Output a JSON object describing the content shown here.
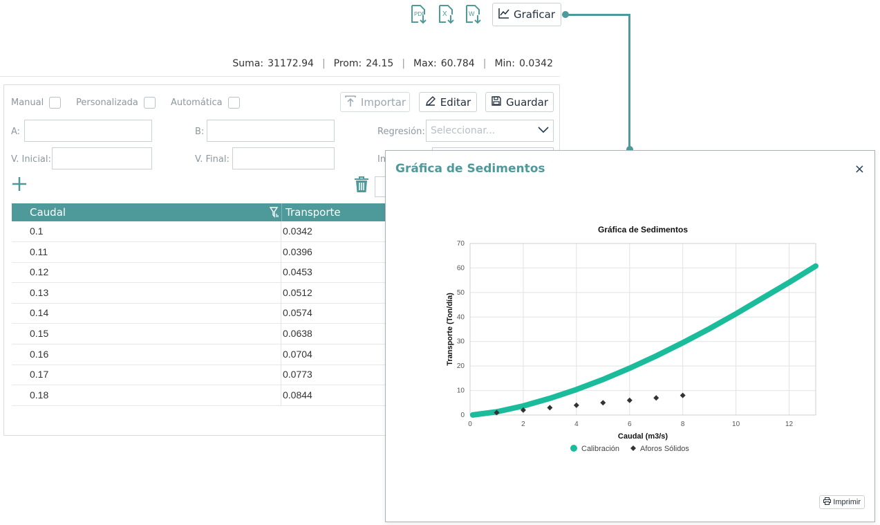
{
  "toolbar": {
    "pdf_icon": "pdf-download-icon",
    "excel_icon": "excel-download-icon",
    "word_icon": "word-download-icon",
    "graficar_label": "Graficar"
  },
  "stats": {
    "suma_label": "Suma:",
    "suma": "31172.94",
    "prom_label": "Prom:",
    "prom": "24.15",
    "max_label": "Max:",
    "max": "60.784",
    "min_label": "Min:",
    "min": "0.0342",
    "sep": "|"
  },
  "options": {
    "manual": "Manual",
    "personalizada": "Personalizada",
    "automatica": "Automática"
  },
  "actions": {
    "importar": "Importar",
    "editar": "Editar",
    "guardar": "Guardar"
  },
  "fields": {
    "a_label": "A:",
    "b_label": "B:",
    "regresion_label": "Regresión:",
    "regresion_placeholder": "Seleccionar...",
    "v_inicial_label": "V. Inicial:",
    "v_final_label": "V. Final:",
    "partial_label": "In"
  },
  "table": {
    "headers": [
      "Caudal",
      "Transporte"
    ],
    "rows": [
      [
        "0.1",
        "0.0342"
      ],
      [
        "0.11",
        "0.0396"
      ],
      [
        "0.12",
        "0.0453"
      ],
      [
        "0.13",
        "0.0512"
      ],
      [
        "0.14",
        "0.0574"
      ],
      [
        "0.15",
        "0.0638"
      ],
      [
        "0.16",
        "0.0704"
      ],
      [
        "0.17",
        "0.0773"
      ],
      [
        "0.18",
        "0.0844"
      ]
    ]
  },
  "modal": {
    "title": "Gráfica de Sedimentos",
    "close": "×",
    "print_label": "Imprimir"
  },
  "colors": {
    "accent": "#4e9a9a",
    "calibracion": "#1abc9c",
    "aforos": "#333333"
  },
  "chart_data": {
    "type": "scatter",
    "title": "Gráfica de Sedimentos",
    "xlabel": "Caudal (m3/s)",
    "ylabel": "Transporte (Ton/día)",
    "xlim": [
      0,
      13
    ],
    "ylim": [
      0,
      70
    ],
    "xticks": [
      0,
      2,
      4,
      6,
      8,
      10,
      12
    ],
    "yticks": [
      0,
      10,
      20,
      30,
      40,
      50,
      60,
      70
    ],
    "grid": true,
    "legend_position": "bottom",
    "series": [
      {
        "name": "Calibración",
        "kind": "line",
        "x": [
          0.1,
          1,
          2,
          3,
          4,
          5,
          6,
          7,
          8,
          9,
          10,
          11,
          12,
          13
        ],
        "y": [
          0.0342,
          1.3,
          3.7,
          6.8,
          10.4,
          14.5,
          19.1,
          24.1,
          29.5,
          35.2,
          41.3,
          47.7,
          54.1,
          60.784
        ]
      },
      {
        "name": "Aforos Sólidos",
        "kind": "scatter",
        "x": [
          1,
          2,
          3,
          4,
          5,
          6,
          7,
          8
        ],
        "y": [
          1,
          2,
          3,
          4,
          5,
          6,
          7,
          8
        ]
      }
    ]
  }
}
